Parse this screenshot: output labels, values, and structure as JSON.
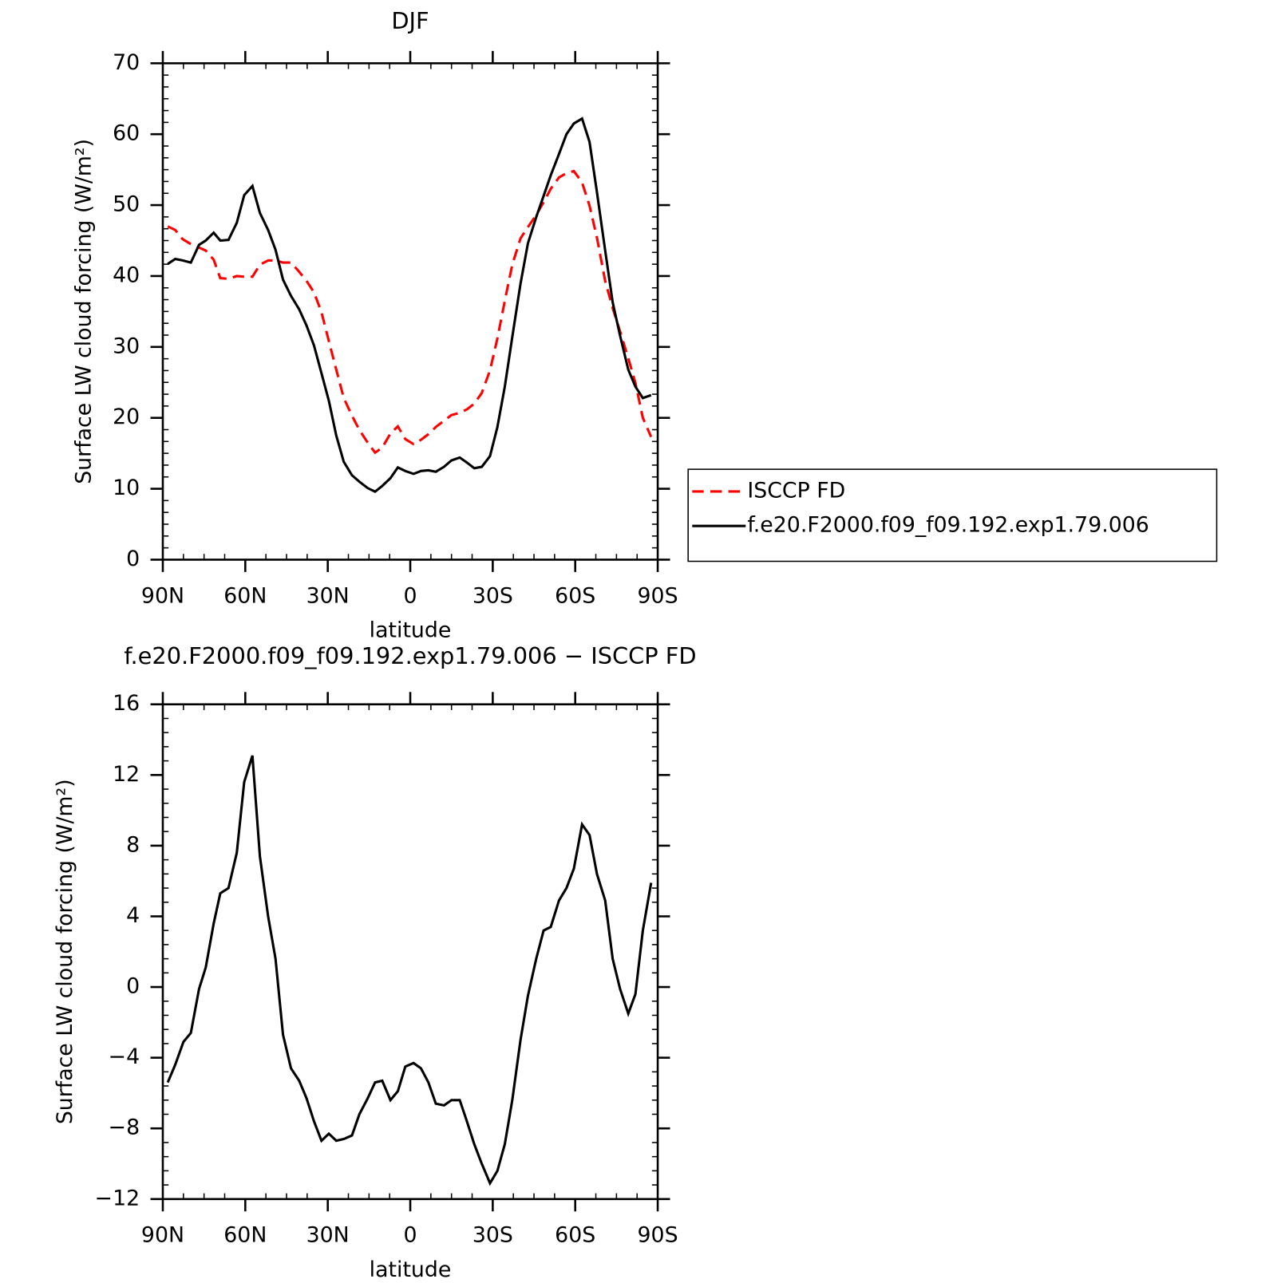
{
  "chart_data": [
    {
      "type": "line",
      "title": "DJF",
      "xlabel": "latitude",
      "ylabel": "Surface LW cloud forcing (W/m²)",
      "xlim": [
        90,
        -90
      ],
      "xticks": [
        {
          "value": 90,
          "label": "90N"
        },
        {
          "value": 60,
          "label": "60N"
        },
        {
          "value": 30,
          "label": "30N"
        },
        0,
        {
          "value": -30,
          "label": "30S"
        },
        {
          "value": -60,
          "label": "60S"
        },
        {
          "value": -90,
          "label": "90S"
        }
      ],
      "ylim": [
        0,
        70
      ],
      "yticks": [
        0,
        10,
        20,
        30,
        40,
        50,
        60,
        70
      ],
      "legend": "right",
      "x": [
        88.2,
        85.5,
        82.8,
        79.8,
        76.8,
        74.4,
        71.5,
        69.1,
        66.1,
        63.1,
        60.4,
        57.4,
        54.7,
        51.7,
        49.0,
        46.3,
        43.4,
        40.4,
        37.7,
        35.0,
        32.3,
        29.6,
        26.9,
        24.2,
        21.2,
        18.5,
        15.5,
        12.8,
        10.2,
        7.2,
        4.5,
        1.8,
        -1.2,
        -3.9,
        -6.6,
        -9.3,
        -12.3,
        -15.0,
        -18.0,
        -20.6,
        -23.3,
        -26.0,
        -29.0,
        -31.7,
        -34.4,
        -37.1,
        -40.1,
        -42.8,
        -45.8,
        -48.5,
        -51.1,
        -54.1,
        -56.8,
        -59.5,
        -62.5,
        -65.2,
        -67.9,
        -70.9,
        -73.6,
        -76.3,
        -79.3,
        -81.9,
        -84.6,
        -87.6
      ],
      "series": [
        {
          "name": "ISCCP FD",
          "color": "#ff0000",
          "style": "dashed",
          "values": [
            47.0,
            46.5,
            45.2,
            44.5,
            44.0,
            43.6,
            42.3,
            39.7,
            39.6,
            40.0,
            39.9,
            39.9,
            41.6,
            42.2,
            42.2,
            41.9,
            41.9,
            40.6,
            39.3,
            37.7,
            34.9,
            30.8,
            26.8,
            22.8,
            20.3,
            18.3,
            16.5,
            15.1,
            15.8,
            17.8,
            18.8,
            17.0,
            16.3,
            16.9,
            17.7,
            18.7,
            19.6,
            20.4,
            20.7,
            21.2,
            22.0,
            23.5,
            26.7,
            31.2,
            36.5,
            41.6,
            45.3,
            46.9,
            48.6,
            50.4,
            52.3,
            53.9,
            54.5,
            54.8,
            53.2,
            49.9,
            45.4,
            39.3,
            35.5,
            32.2,
            28.4,
            24.9,
            20.0,
            17.3
          ]
        },
        {
          "name": "f.e20.F2000.f09_f09.192.exp1.79.006",
          "color": "#000000",
          "style": "solid",
          "values": [
            41.7,
            42.4,
            42.2,
            41.9,
            44.4,
            45.0,
            46.1,
            45.0,
            45.1,
            47.5,
            51.4,
            52.7,
            48.9,
            46.5,
            43.7,
            39.5,
            37.2,
            35.3,
            33.0,
            30.2,
            26.3,
            22.4,
            17.5,
            13.8,
            11.9,
            11.0,
            10.1,
            9.6,
            10.4,
            11.5,
            13.0,
            12.5,
            12.1,
            12.5,
            12.6,
            12.4,
            13.1,
            14.0,
            14.4,
            13.7,
            12.9,
            13.1,
            14.6,
            18.7,
            24.4,
            31.4,
            38.9,
            44.6,
            48.3,
            51.3,
            54.2,
            57.2,
            60.0,
            61.5,
            62.2,
            58.9,
            51.8,
            43.6,
            36.3,
            31.6,
            26.8,
            24.4,
            22.8,
            23.2
          ]
        }
      ]
    },
    {
      "type": "line",
      "title": "f.e20.F2000.f09_f09.192.exp1.79.006 − ISCCP FD",
      "xlabel": "latitude",
      "ylabel": "Surface LW cloud forcing (W/m²)",
      "xlim": [
        90,
        -90
      ],
      "xticks": [
        {
          "value": 90,
          "label": "90N"
        },
        {
          "value": 60,
          "label": "60N"
        },
        {
          "value": 30,
          "label": "30N"
        },
        0,
        {
          "value": -30,
          "label": "30S"
        },
        {
          "value": -60,
          "label": "60S"
        },
        {
          "value": -90,
          "label": "90S"
        }
      ],
      "ylim": [
        -12,
        16
      ],
      "yticks": [
        {
          "value": -12,
          "label": "−12"
        },
        {
          "value": -8,
          "label": "−8"
        },
        {
          "value": -4,
          "label": "−4"
        },
        0,
        4,
        8,
        12,
        16
      ],
      "x": [
        88.2,
        85.5,
        82.5,
        79.8,
        76.8,
        74.4,
        71.5,
        69.1,
        66.1,
        63.1,
        60.4,
        57.4,
        54.7,
        51.7,
        49.0,
        46.3,
        43.4,
        40.4,
        37.7,
        35.0,
        32.3,
        29.6,
        26.9,
        24.2,
        21.2,
        18.5,
        15.5,
        12.8,
        10.2,
        7.2,
        4.5,
        1.8,
        -1.2,
        -3.9,
        -6.6,
        -9.3,
        -12.3,
        -15.0,
        -18.0,
        -20.6,
        -23.3,
        -26.0,
        -29.0,
        -31.7,
        -34.4,
        -37.1,
        -40.1,
        -42.8,
        -45.8,
        -48.5,
        -51.1,
        -54.1,
        -56.8,
        -59.5,
        -62.5,
        -65.2,
        -67.9,
        -70.9,
        -73.6,
        -76.3,
        -79.3,
        -81.9,
        -84.6,
        -87.6
      ],
      "series": [
        {
          "color": "#000000",
          "style": "solid",
          "values": [
            -5.4,
            -4.4,
            -3.1,
            -2.6,
            -0.1,
            1.1,
            3.6,
            5.3,
            5.6,
            7.6,
            11.6,
            13.1,
            7.4,
            4.0,
            1.6,
            -2.7,
            -4.6,
            -5.3,
            -6.3,
            -7.6,
            -8.7,
            -8.3,
            -8.7,
            -8.6,
            -8.4,
            -7.2,
            -6.3,
            -5.4,
            -5.3,
            -6.4,
            -5.9,
            -4.5,
            -4.3,
            -4.6,
            -5.4,
            -6.6,
            -6.7,
            -6.4,
            -6.4,
            -7.6,
            -8.9,
            -10.0,
            -11.1,
            -10.4,
            -8.9,
            -6.4,
            -3.0,
            -0.5,
            1.6,
            3.2,
            3.4,
            4.9,
            5.6,
            6.7,
            9.2,
            8.6,
            6.4,
            4.9,
            1.6,
            -0.1,
            -1.5,
            -0.4,
            3.2,
            5.9
          ]
        }
      ]
    }
  ]
}
